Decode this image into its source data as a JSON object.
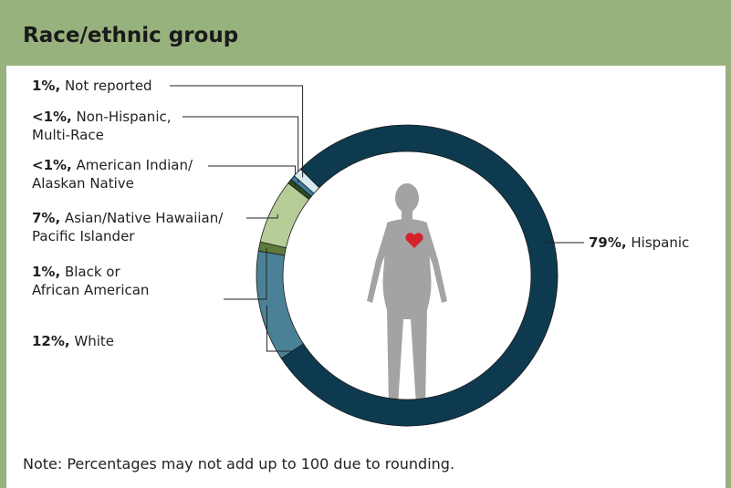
{
  "chart_data": {
    "type": "donut",
    "title": "Race/ethnic group",
    "categories": [
      "Hispanic",
      "White",
      "Black or\nAfrican American",
      "Asian/Native Hawaiian/\nPacific Islander",
      "American Indian/\nAlaskan Native",
      "Non-Hispanic,\nMulti-Race",
      "Not reported"
    ],
    "values": [
      79,
      12,
      1,
      7,
      0.5,
      0.5,
      1
    ],
    "value_labels": [
      "79%,",
      "12%,",
      "1%,",
      "7%,",
      "<1%,",
      "<1%,",
      "1%,"
    ],
    "colors": [
      "#0e3a4f",
      "#4b8197",
      "#5d7a3c",
      "#b7cd98",
      "#2d4a1f",
      "#3d7ea1",
      "#d8eaf1"
    ],
    "note": "Note: Percentages may not add up to 100 due to rounding."
  }
}
